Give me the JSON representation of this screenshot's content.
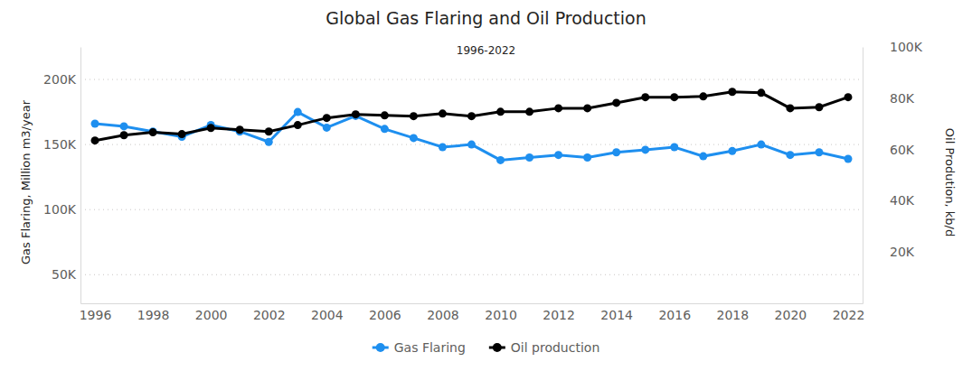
{
  "chart_data": {
    "type": "line",
    "title": "Global Gas Flaring and Oil Production",
    "subtitle": "1996-2022",
    "ylabel": "Gas Flaring, Million m3/year",
    "y2label": "Oil Prodution, kb/d",
    "x": [
      1996,
      1997,
      1998,
      1999,
      2000,
      2001,
      2002,
      2003,
      2004,
      2005,
      2006,
      2007,
      2008,
      2009,
      2010,
      2011,
      2012,
      2013,
      2014,
      2015,
      2016,
      2017,
      2018,
      2019,
      2020,
      2021,
      2022
    ],
    "xlim": [
      1995.5,
      2022.5
    ],
    "xticks": [
      1996,
      1998,
      2000,
      2002,
      2004,
      2006,
      2008,
      2010,
      2012,
      2014,
      2016,
      2018,
      2020,
      2022
    ],
    "ylim": [
      28000,
      225000
    ],
    "yticks": [
      {
        "value": 50000,
        "label": "50K"
      },
      {
        "value": 100000,
        "label": "100K"
      },
      {
        "value": 150000,
        "label": "150K"
      },
      {
        "value": 200000,
        "label": "200K"
      }
    ],
    "y2lim": [
      0,
      100000
    ],
    "y2ticks": [
      {
        "value": 20000,
        "label": "20K"
      },
      {
        "value": 40000,
        "label": "40K"
      },
      {
        "value": 60000,
        "label": "60K"
      },
      {
        "value": 80000,
        "label": "80K"
      },
      {
        "value": 100000,
        "label": "100K"
      }
    ],
    "grid": true,
    "legend": "bottom",
    "series": [
      {
        "name": "Gas Flaring",
        "color": "#1E8FEF",
        "marker": "circle",
        "values": [
          166000,
          164000,
          160000,
          156000,
          165000,
          160000,
          152000,
          175000,
          163000,
          172000,
          162000,
          155000,
          148000,
          150000,
          138000,
          140000,
          142000,
          140000,
          144000,
          146000,
          148000,
          141000,
          145000,
          150000,
          142000,
          144000,
          139000
        ]
      },
      {
        "name": "Oil production",
        "color": "#000000",
        "marker": "circle",
        "axis": "y2",
        "values": [
          63500,
          65600,
          66700,
          66000,
          68400,
          67700,
          67000,
          69500,
          72300,
          73700,
          73300,
          73000,
          74000,
          73000,
          74700,
          74700,
          76100,
          76100,
          78200,
          80400,
          80400,
          80700,
          82500,
          82100,
          76100,
          76500,
          80400
        ]
      }
    ]
  }
}
